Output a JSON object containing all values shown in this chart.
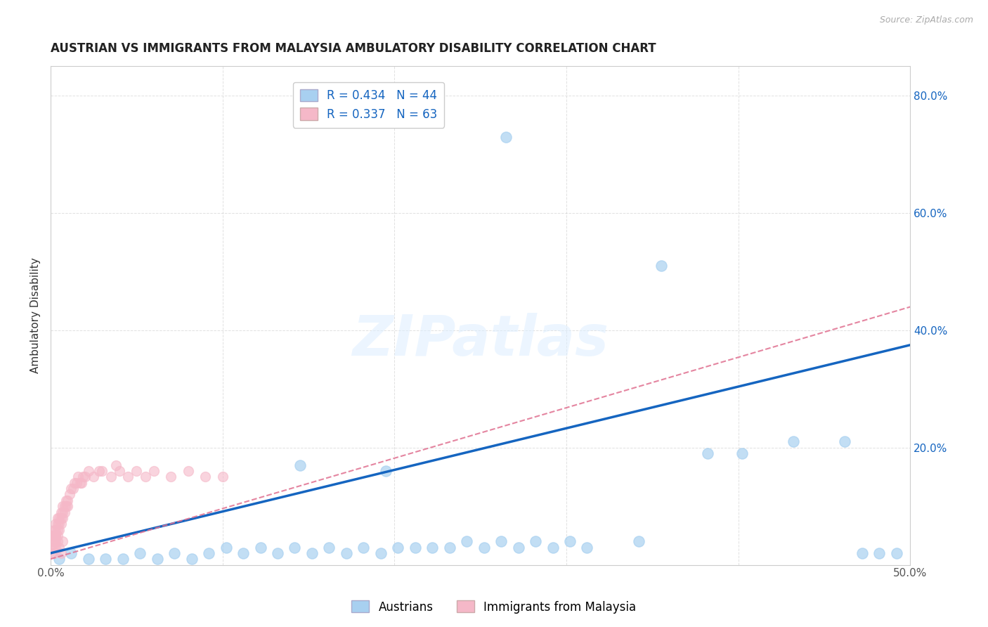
{
  "title": "AUSTRIAN VS IMMIGRANTS FROM MALAYSIA AMBULATORY DISABILITY CORRELATION CHART",
  "source": "Source: ZipAtlas.com",
  "ylabel": "Ambulatory Disability",
  "xlim": [
    0,
    0.5
  ],
  "ylim": [
    0,
    0.85
  ],
  "xticks": [
    0.0,
    0.1,
    0.2,
    0.3,
    0.4,
    0.5
  ],
  "xtick_labels": [
    "0.0%",
    "",
    "",
    "",
    "",
    "50.0%"
  ],
  "yticks": [
    0.0,
    0.2,
    0.4,
    0.6,
    0.8
  ],
  "ytick_labels_right": [
    "",
    "20.0%",
    "40.0%",
    "60.0%",
    "80.0%"
  ],
  "background_color": "#ffffff",
  "grid_color": "#cccccc",
  "legend_label_blue": "R = 0.434   N = 44",
  "legend_label_pink": "R = 0.337   N = 63",
  "blue_scatter_color": "#a8d0f0",
  "pink_scatter_color": "#f5b8c8",
  "trendline_blue_color": "#1565C0",
  "trendline_pink_color": "#e07090",
  "watermark_text": "ZIPatlas",
  "blue_scatter_x": [
    0.005,
    0.012,
    0.022,
    0.032,
    0.042,
    0.052,
    0.062,
    0.072,
    0.082,
    0.092,
    0.102,
    0.112,
    0.122,
    0.132,
    0.142,
    0.152,
    0.162,
    0.172,
    0.182,
    0.192,
    0.202,
    0.212,
    0.222,
    0.232,
    0.242,
    0.252,
    0.262,
    0.272,
    0.282,
    0.292,
    0.302,
    0.312,
    0.342,
    0.382,
    0.402,
    0.432,
    0.462,
    0.472,
    0.482,
    0.492,
    0.195,
    0.145,
    0.265,
    0.355
  ],
  "blue_scatter_y": [
    0.01,
    0.02,
    0.01,
    0.01,
    0.01,
    0.02,
    0.01,
    0.02,
    0.01,
    0.02,
    0.03,
    0.02,
    0.03,
    0.02,
    0.03,
    0.02,
    0.03,
    0.02,
    0.03,
    0.02,
    0.03,
    0.03,
    0.03,
    0.03,
    0.04,
    0.03,
    0.04,
    0.03,
    0.04,
    0.03,
    0.04,
    0.03,
    0.04,
    0.19,
    0.19,
    0.21,
    0.21,
    0.02,
    0.02,
    0.02,
    0.16,
    0.17,
    0.73,
    0.51
  ],
  "pink_scatter_x": [
    0.001,
    0.001,
    0.001,
    0.001,
    0.002,
    0.002,
    0.002,
    0.002,
    0.002,
    0.003,
    0.003,
    0.003,
    0.003,
    0.003,
    0.004,
    0.004,
    0.004,
    0.004,
    0.005,
    0.005,
    0.005,
    0.006,
    0.006,
    0.006,
    0.007,
    0.007,
    0.007,
    0.008,
    0.008,
    0.009,
    0.009,
    0.01,
    0.01,
    0.011,
    0.012,
    0.013,
    0.014,
    0.015,
    0.016,
    0.017,
    0.018,
    0.019,
    0.02,
    0.022,
    0.025,
    0.028,
    0.03,
    0.035,
    0.038,
    0.04,
    0.045,
    0.05,
    0.055,
    0.06,
    0.07,
    0.08,
    0.09,
    0.1,
    0.003,
    0.004,
    0.005,
    0.006,
    0.007
  ],
  "pink_scatter_y": [
    0.04,
    0.05,
    0.03,
    0.02,
    0.04,
    0.05,
    0.06,
    0.03,
    0.02,
    0.05,
    0.06,
    0.07,
    0.04,
    0.03,
    0.06,
    0.07,
    0.08,
    0.05,
    0.07,
    0.08,
    0.06,
    0.08,
    0.09,
    0.07,
    0.09,
    0.1,
    0.08,
    0.1,
    0.09,
    0.1,
    0.11,
    0.11,
    0.1,
    0.12,
    0.13,
    0.13,
    0.14,
    0.14,
    0.15,
    0.14,
    0.14,
    0.15,
    0.15,
    0.16,
    0.15,
    0.16,
    0.16,
    0.15,
    0.17,
    0.16,
    0.15,
    0.16,
    0.15,
    0.16,
    0.15,
    0.16,
    0.15,
    0.15,
    0.05,
    0.04,
    0.03,
    0.02,
    0.04
  ],
  "blue_trend_x": [
    0.0,
    0.5
  ],
  "blue_trend_y": [
    0.02,
    0.375
  ],
  "pink_trend_x": [
    0.0,
    0.5
  ],
  "pink_trend_y": [
    0.01,
    0.44
  ],
  "bottom_legend": [
    "Austrians",
    "Immigrants from Malaysia"
  ]
}
